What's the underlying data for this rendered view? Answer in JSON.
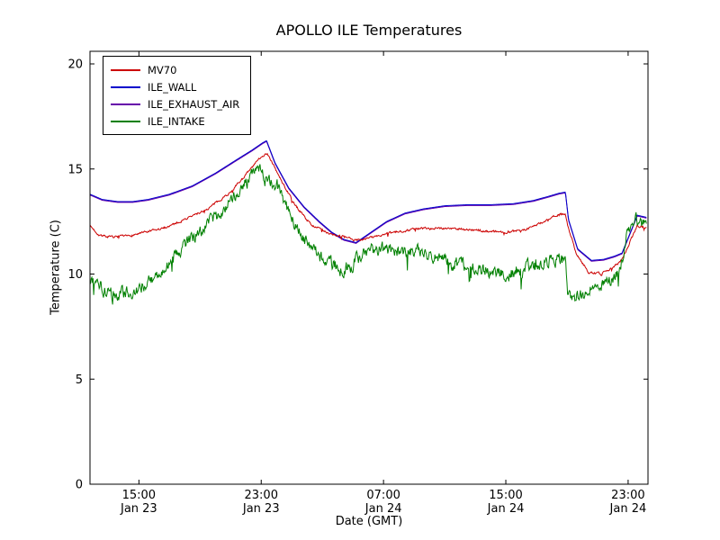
{
  "figure": {
    "title": "APOLLO ILE Temperatures",
    "xlabel": "Date (GMT)",
    "ylabel": "Temperature (C)"
  },
  "chart_data": {
    "type": "line",
    "title": "APOLLO ILE Temperatures",
    "xlabel": "Date (GMT)",
    "ylabel": "Temperature (C)",
    "x_unit": "hours since Jan 23 00:00 GMT",
    "xlim": [
      11.8,
      48.3
    ],
    "ylim": [
      0,
      20.6
    ],
    "yticks": [
      0,
      5,
      10,
      15,
      20
    ],
    "xticks": [
      {
        "x": 15,
        "time": "15:00",
        "date": "Jan 23"
      },
      {
        "x": 23,
        "time": "23:00",
        "date": "Jan 23"
      },
      {
        "x": 31,
        "time": "07:00",
        "date": "Jan 24"
      },
      {
        "x": 39,
        "time": "15:00",
        "date": "Jan 24"
      },
      {
        "x": 47,
        "time": "23:00",
        "date": "Jan 24"
      }
    ],
    "grid": false,
    "legend": {
      "position": "upper left"
    },
    "draw_order": [
      2,
      1,
      0,
      3
    ],
    "series": [
      {
        "name": "MV70",
        "color": "#cc0000",
        "noise_band": 0.04,
        "x": [
          11.8,
          12.4,
          13.2,
          14.2,
          15.2,
          16.5,
          18,
          19.5,
          21,
          22.2,
          23,
          23.4,
          24.2,
          25.2,
          26.2,
          27.2,
          28.2,
          29.2,
          30.2,
          31.5,
          33,
          34.5,
          36,
          37.5,
          39,
          40.2,
          41.2,
          42.2,
          42.9,
          43.05,
          43.6,
          44.4,
          45.2,
          46,
          46.6,
          47.1,
          47.6,
          48.2
        ],
        "y": [
          12.3,
          11.85,
          11.75,
          11.8,
          11.95,
          12.15,
          12.6,
          13.1,
          13.9,
          14.9,
          15.6,
          15.75,
          14.6,
          13.3,
          12.4,
          12,
          11.8,
          11.6,
          11.75,
          11.95,
          12.15,
          12.2,
          12.15,
          12.05,
          12,
          12.1,
          12.4,
          12.75,
          12.9,
          12.3,
          11,
          10.1,
          10,
          10.3,
          10.7,
          11.5,
          12.3,
          12.2
        ]
      },
      {
        "name": "ILE_WALL",
        "color": "#0000cc",
        "noise_band": 0,
        "x": [
          11.8,
          12.6,
          13.6,
          14.6,
          15.6,
          17,
          18.5,
          20,
          21.3,
          22.4,
          23.1,
          23.35,
          23.9,
          24.8,
          25.8,
          26.8,
          27.6,
          28.4,
          29.2,
          30.2,
          31.2,
          32.4,
          33.6,
          35,
          36.5,
          38,
          39.5,
          40.8,
          41.8,
          42.5,
          42.9,
          43.1,
          43.7,
          44.6,
          45.4,
          46.1,
          46.6,
          47.1,
          47.6,
          48.2
        ],
        "y": [
          13.8,
          13.55,
          13.45,
          13.45,
          13.55,
          13.8,
          14.2,
          14.8,
          15.4,
          15.9,
          16.25,
          16.35,
          15.3,
          14.1,
          13.2,
          12.5,
          12,
          11.65,
          11.5,
          12,
          12.5,
          12.9,
          13.1,
          13.25,
          13.3,
          13.3,
          13.35,
          13.5,
          13.7,
          13.85,
          13.9,
          12.6,
          11.2,
          10.65,
          10.7,
          10.85,
          11,
          11.9,
          12.8,
          12.7
        ]
      },
      {
        "name": "ILE_EXHAUST_AIR",
        "color": "#6600aa",
        "noise_band": 0,
        "x": [
          11.8,
          12.6,
          13.6,
          14.6,
          15.6,
          17,
          18.5,
          20,
          21.3,
          22.4,
          23.1,
          23.35,
          23.9,
          24.8,
          25.8,
          26.8,
          27.6,
          28.4,
          29.2,
          30.2,
          31.2,
          32.4,
          33.6,
          35,
          36.5,
          38,
          39.5,
          40.8,
          41.8,
          42.5,
          42.9,
          43.1,
          43.7,
          44.6,
          45.4,
          46.1,
          46.6,
          47.1,
          47.6,
          48.2
        ],
        "y": [
          13.76,
          13.51,
          13.41,
          13.41,
          13.51,
          13.76,
          14.16,
          14.76,
          15.36,
          15.86,
          16.21,
          16.31,
          15.26,
          14.06,
          13.16,
          12.46,
          11.96,
          11.61,
          11.46,
          11.96,
          12.46,
          12.86,
          13.06,
          13.21,
          13.26,
          13.26,
          13.31,
          13.46,
          13.66,
          13.81,
          13.86,
          12.56,
          11.16,
          10.61,
          10.66,
          10.81,
          10.96,
          11.86,
          12.76,
          12.66
        ]
      },
      {
        "name": "ILE_INTAKE",
        "color": "#008000",
        "noise_band": 0.22,
        "x": [
          11.8,
          12.2,
          12.7,
          13.2,
          14,
          15,
          16,
          17,
          18,
          19,
          20,
          21,
          22,
          22.7,
          23.1,
          23.6,
          24,
          24.5,
          25.2,
          26,
          26.8,
          27.6,
          28.3,
          28.9,
          29.6,
          30.5,
          31.5,
          32.5,
          33.5,
          34.5,
          35.5,
          36.5,
          37.5,
          38.5,
          39.5,
          40.5,
          41.5,
          42.4,
          42.9,
          43.05,
          43.7,
          44.5,
          45.3,
          46,
          46.5,
          47,
          47.5,
          48.2
        ],
        "y": [
          9.4,
          9.9,
          9.1,
          9,
          9.1,
          9.3,
          9.9,
          10.6,
          11.3,
          12,
          12.7,
          13.5,
          14.3,
          15,
          14.7,
          14.35,
          14.3,
          13.5,
          12.4,
          11.5,
          10.9,
          10.5,
          10.2,
          10.4,
          11,
          11.2,
          11.15,
          11.1,
          11,
          10.8,
          10.5,
          10.35,
          10.2,
          10.1,
          10,
          10.3,
          10.55,
          10.65,
          10.7,
          8.75,
          9,
          9.3,
          9.6,
          9.8,
          10.3,
          12.2,
          12.6,
          12.2
        ]
      }
    ]
  }
}
